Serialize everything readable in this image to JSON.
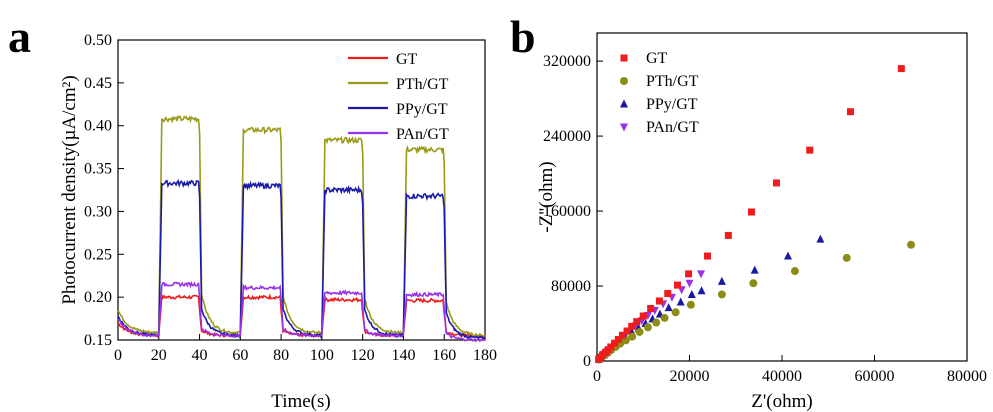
{
  "chart_data": [
    {
      "panel": "a",
      "type": "line",
      "xlabel": "Time(s)",
      "ylabel": "Photocurrent density(µA/cm²)",
      "xlim": [
        0,
        180
      ],
      "ylim": [
        0.15,
        0.5
      ],
      "xticks": [
        "0",
        "20",
        "40",
        "60",
        "80",
        "100",
        "120",
        "140",
        "160",
        "180"
      ],
      "yticks": [
        "0.15",
        "0.20",
        "0.25",
        "0.30",
        "0.35",
        "0.40",
        "0.45",
        "0.50"
      ],
      "legend_position": "top-right",
      "series": [
        {
          "name": "GT",
          "color": "#ee1c1c",
          "start": 0.17,
          "dark": 0.155,
          "on": [
            0.2,
            0.2,
            0.197,
            0.196
          ],
          "end": 0.155
        },
        {
          "name": "PTh/GT",
          "color": "#9a9a1c",
          "start": 0.185,
          "dark": 0.158,
          "on": [
            0.408,
            0.395,
            0.383,
            0.372
          ],
          "end": 0.155
        },
        {
          "name": "PPy/GT",
          "color": "#1a1aa8",
          "start": 0.178,
          "dark": 0.155,
          "on": [
            0.333,
            0.33,
            0.325,
            0.318
          ],
          "end": 0.152
        },
        {
          "name": "PAn/GT",
          "color": "#9932e8",
          "start": 0.175,
          "dark": 0.155,
          "on": [
            0.215,
            0.211,
            0.205,
            0.203
          ],
          "end": 0.15
        }
      ],
      "light_on_intervals": [
        [
          20,
          40
        ],
        [
          60,
          80
        ],
        [
          100,
          120
        ],
        [
          140,
          160
        ]
      ]
    },
    {
      "panel": "b",
      "type": "scatter",
      "xlabel": "Z'(ohm)",
      "ylabel": "-Z''(ohm)",
      "xlim": [
        0,
        80000
      ],
      "ylim": [
        0,
        350000
      ],
      "xticks": [
        "0",
        "20000",
        "40000",
        "60000",
        "80000"
      ],
      "yticks": [
        "0",
        "80000",
        "160000",
        "240000",
        "320000"
      ],
      "legend_position": "top-left",
      "series": [
        {
          "name": "GT",
          "color": "#ee1c1c",
          "marker": "square",
          "points": [
            [
              400,
              2000
            ],
            [
              800,
              4000
            ],
            [
              1200,
              6500
            ],
            [
              1800,
              9000
            ],
            [
              2400,
              12000
            ],
            [
              3000,
              15000
            ],
            [
              3800,
              19000
            ],
            [
              4600,
              23000
            ],
            [
              5500,
              27500
            ],
            [
              6500,
              32000
            ],
            [
              7500,
              37000
            ],
            [
              8600,
              42000
            ],
            [
              10000,
              48000
            ],
            [
              11600,
              56000
            ],
            [
              13500,
              64000
            ],
            [
              15300,
              72000
            ],
            [
              17400,
              81000
            ],
            [
              19800,
              93000
            ],
            [
              23900,
              112000
            ],
            [
              28400,
              134000
            ],
            [
              33400,
              159000
            ],
            [
              38800,
              190000
            ],
            [
              46000,
              225000
            ],
            [
              54800,
              266000
            ],
            [
              65800,
              312000
            ]
          ]
        },
        {
          "name": "PTh/GT",
          "color": "#8c8c16",
          "marker": "circle",
          "points": [
            [
              400,
              1500
            ],
            [
              900,
              3500
            ],
            [
              1500,
              6000
            ],
            [
              2200,
              8500
            ],
            [
              3000,
              11500
            ],
            [
              4000,
              15000
            ],
            [
              5000,
              18500
            ],
            [
              6200,
              22000
            ],
            [
              7600,
              26000
            ],
            [
              9200,
              31000
            ],
            [
              11000,
              36000
            ],
            [
              12800,
              41000
            ],
            [
              14600,
              46000
            ],
            [
              17000,
              52000
            ],
            [
              20300,
              60000
            ],
            [
              27000,
              71000
            ],
            [
              33800,
              83000
            ],
            [
              42800,
              96000
            ],
            [
              54000,
              110000
            ],
            [
              67900,
              124000
            ]
          ]
        },
        {
          "name": "PPy/GT",
          "color": "#1a1aa0",
          "marker": "triangle",
          "points": [
            [
              400,
              1800
            ],
            [
              900,
              4000
            ],
            [
              1500,
              6500
            ],
            [
              2200,
              9500
            ],
            [
              3000,
              13000
            ],
            [
              4000,
              17000
            ],
            [
              5000,
              21000
            ],
            [
              6200,
              25000
            ],
            [
              7600,
              30000
            ],
            [
              9000,
              35000
            ],
            [
              10500,
              40000
            ],
            [
              12000,
              45000
            ],
            [
              13600,
              50000
            ],
            [
              15500,
              57000
            ],
            [
              18100,
              63000
            ],
            [
              20500,
              71000
            ],
            [
              22600,
              75000
            ],
            [
              27000,
              85000
            ],
            [
              34100,
              97000
            ],
            [
              41300,
              112000
            ],
            [
              48300,
              130000
            ]
          ]
        },
        {
          "name": "PAn/GT",
          "color": "#9932e8",
          "marker": "triangle-down",
          "points": [
            [
              400,
              1800
            ],
            [
              900,
              4000
            ],
            [
              1500,
              7000
            ],
            [
              2200,
              10000
            ],
            [
              3000,
              13500
            ],
            [
              4000,
              18000
            ],
            [
              5000,
              22500
            ],
            [
              6000,
              27000
            ],
            [
              7200,
              32000
            ],
            [
              8400,
              37500
            ],
            [
              9700,
              43000
            ],
            [
              11000,
              48500
            ],
            [
              12500,
              54000
            ],
            [
              14300,
              61000
            ],
            [
              16200,
              68000
            ],
            [
              18300,
              76000
            ],
            [
              20000,
              83000
            ],
            [
              22500,
              93000
            ]
          ]
        }
      ]
    }
  ],
  "panels": {
    "a": "a",
    "b": "b"
  }
}
